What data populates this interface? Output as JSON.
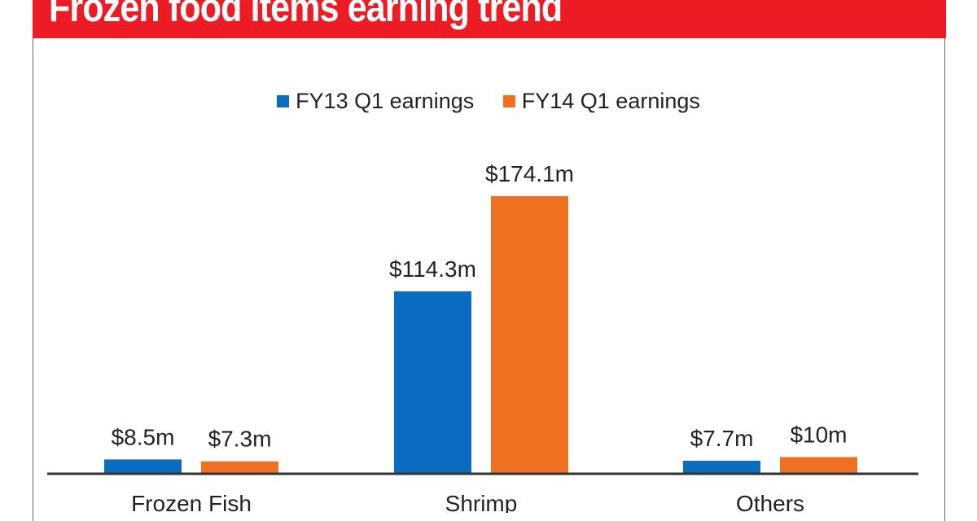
{
  "chart_data": {
    "type": "bar",
    "title": "Frozen food items earning trend",
    "categories": [
      "Frozen Fish",
      "Shrimp",
      "Others"
    ],
    "series": [
      {
        "name": "FY13 Q1 earnings",
        "values": [
          8.5,
          114.3,
          7.7
        ],
        "labels": [
          "$8.5m",
          "$114.3m",
          "$7.7m"
        ],
        "color": "#0a6dbf"
      },
      {
        "name": "FY14 Q1 earnings",
        "values": [
          7.3,
          174.1,
          10
        ],
        "labels": [
          "$7.3m",
          "$174.1m",
          "$10m"
        ],
        "color": "#f07022"
      }
    ],
    "unit": "$m",
    "legend": "top-center",
    "grid": false,
    "ylim": [
      0,
      180
    ]
  },
  "colors": {
    "header": "#ed1c24"
  }
}
